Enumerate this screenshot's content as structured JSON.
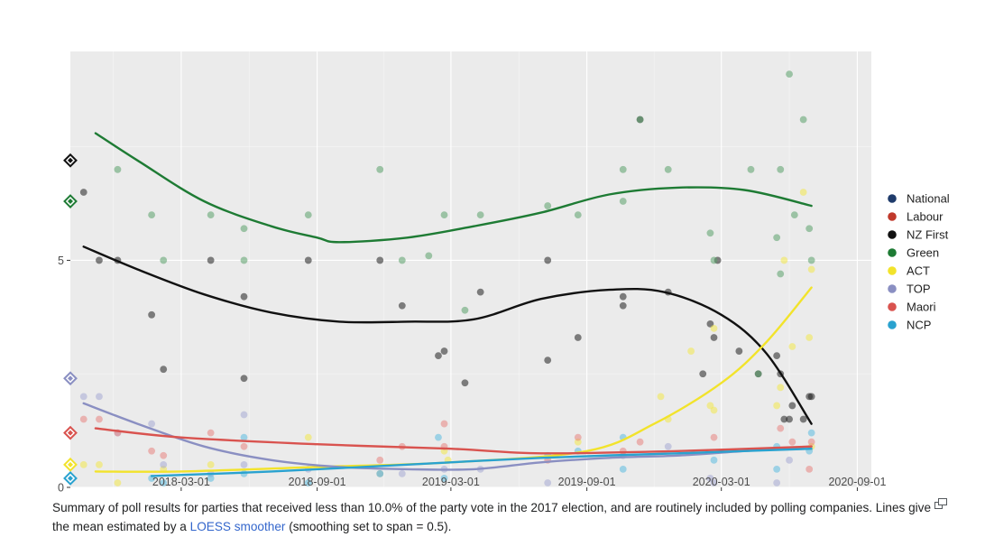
{
  "chart_data": {
    "type": "scatter",
    "title": "",
    "xlabel": "",
    "ylabel": "",
    "x_ticks": [
      "2018-03-01",
      "2018-09-01",
      "2019-03-01",
      "2019-09-01",
      "2020-03-01",
      "2020-09-01"
    ],
    "y_ticks": [
      "0",
      "5"
    ],
    "xlim": [
      "2017-10-02",
      "2020-09-20"
    ],
    "ylim": [
      0,
      9.6
    ],
    "grid": true,
    "legend_position": "right",
    "colors": {
      "National": "#1f3b6b",
      "Labour": "#c0392b",
      "NZ First": "#111111",
      "Green": "#1e7b34",
      "ACT": "#f2e32b",
      "TOP": "#8a8fc2",
      "Maori": "#d9534f",
      "NCP": "#2aa2cf"
    },
    "series": [
      {
        "name": "NZ First",
        "points": [
          [
            "2017-10-20",
            6.5
          ],
          [
            "2017-11-10",
            5.0
          ],
          [
            "2017-12-05",
            5.0
          ],
          [
            "2018-01-20",
            3.8
          ],
          [
            "2018-02-05",
            2.6
          ],
          [
            "2018-04-10",
            5.0
          ],
          [
            "2018-05-25",
            2.4
          ],
          [
            "2018-05-25",
            4.2
          ],
          [
            "2018-08-20",
            5.0
          ],
          [
            "2018-11-25",
            5.0
          ],
          [
            "2018-12-25",
            4.0
          ],
          [
            "2019-02-12",
            2.9
          ],
          [
            "2019-02-20",
            3.0
          ],
          [
            "2019-03-20",
            2.3
          ],
          [
            "2019-04-10",
            4.3
          ],
          [
            "2019-07-10",
            2.8
          ],
          [
            "2019-07-10",
            5.0
          ],
          [
            "2019-08-20",
            3.3
          ],
          [
            "2019-10-20",
            4.2
          ],
          [
            "2019-10-20",
            4.0
          ],
          [
            "2019-11-12",
            8.1
          ],
          [
            "2019-12-20",
            4.3
          ],
          [
            "2020-02-05",
            2.5
          ],
          [
            "2020-02-15",
            3.6
          ],
          [
            "2020-02-20",
            3.3
          ],
          [
            "2020-02-25",
            5.0
          ],
          [
            "2020-03-25",
            3.0
          ],
          [
            "2020-04-20",
            2.5
          ],
          [
            "2020-05-15",
            2.9
          ],
          [
            "2020-05-20",
            2.5
          ],
          [
            "2020-05-25",
            1.5
          ],
          [
            "2020-06-01",
            1.5
          ],
          [
            "2020-06-05",
            1.8
          ],
          [
            "2020-06-20",
            1.5
          ],
          [
            "2020-06-28",
            2.0
          ],
          [
            "2020-07-01",
            2.0
          ]
        ],
        "trend": [
          [
            "2017-10-20",
            5.3
          ],
          [
            "2018-01-01",
            4.8
          ],
          [
            "2018-04-01",
            4.25
          ],
          [
            "2018-07-01",
            3.85
          ],
          [
            "2018-10-01",
            3.65
          ],
          [
            "2019-01-01",
            3.65
          ],
          [
            "2019-04-01",
            3.7
          ],
          [
            "2019-07-01",
            4.15
          ],
          [
            "2019-10-01",
            4.35
          ],
          [
            "2019-12-15",
            4.3
          ],
          [
            "2020-03-01",
            3.8
          ],
          [
            "2020-05-01",
            2.95
          ],
          [
            "2020-07-01",
            1.4
          ]
        ],
        "marker": "#1f1f1f"
      },
      {
        "name": "Green",
        "points": [
          [
            "2017-12-05",
            7.0
          ],
          [
            "2018-01-20",
            6.0
          ],
          [
            "2018-02-05",
            5.0
          ],
          [
            "2018-04-10",
            6.0
          ],
          [
            "2018-05-25",
            5.7
          ],
          [
            "2018-05-25",
            5.0
          ],
          [
            "2018-08-20",
            6.0
          ],
          [
            "2018-11-25",
            7.0
          ],
          [
            "2018-12-25",
            5.0
          ],
          [
            "2019-01-30",
            5.1
          ],
          [
            "2019-02-20",
            6.0
          ],
          [
            "2019-03-20",
            3.9
          ],
          [
            "2019-04-10",
            6.0
          ],
          [
            "2019-07-10",
            6.2
          ],
          [
            "2019-08-20",
            6.0
          ],
          [
            "2019-10-20",
            7.0
          ],
          [
            "2019-10-20",
            6.3
          ],
          [
            "2019-11-12",
            8.1
          ],
          [
            "2019-12-20",
            7.0
          ],
          [
            "2020-02-15",
            5.6
          ],
          [
            "2020-02-20",
            5.0
          ],
          [
            "2020-04-10",
            7.0
          ],
          [
            "2020-04-20",
            2.5
          ],
          [
            "2020-05-15",
            5.5
          ],
          [
            "2020-05-20",
            7.0
          ],
          [
            "2020-05-20",
            4.7
          ],
          [
            "2020-06-01",
            9.1
          ],
          [
            "2020-06-08",
            6.0
          ],
          [
            "2020-06-20",
            8.1
          ],
          [
            "2020-06-28",
            5.7
          ],
          [
            "2020-07-01",
            5.0
          ]
        ],
        "trend": [
          [
            "2017-11-05",
            7.8
          ],
          [
            "2018-01-01",
            7.2
          ],
          [
            "2018-04-01",
            6.3
          ],
          [
            "2018-07-01",
            5.75
          ],
          [
            "2018-09-01",
            5.5
          ],
          [
            "2018-10-01",
            5.4
          ],
          [
            "2019-01-01",
            5.5
          ],
          [
            "2019-04-01",
            5.75
          ],
          [
            "2019-07-01",
            6.05
          ],
          [
            "2019-10-01",
            6.45
          ],
          [
            "2020-01-01",
            6.6
          ],
          [
            "2020-04-01",
            6.55
          ],
          [
            "2020-07-01",
            6.2
          ]
        ],
        "marker": "#5aa06a"
      },
      {
        "name": "ACT",
        "points": [
          [
            "2017-10-20",
            0.5
          ],
          [
            "2017-11-10",
            0.5
          ],
          [
            "2017-12-05",
            0.1
          ],
          [
            "2018-02-05",
            0.4
          ],
          [
            "2018-04-10",
            0.5
          ],
          [
            "2018-08-20",
            1.1
          ],
          [
            "2018-11-25",
            0.3
          ],
          [
            "2019-02-20",
            0.8
          ],
          [
            "2019-02-25",
            0.6
          ],
          [
            "2019-08-20",
            1.0
          ],
          [
            "2019-12-10",
            2.0
          ],
          [
            "2019-12-20",
            1.5
          ],
          [
            "2020-01-20",
            3.0
          ],
          [
            "2020-02-15",
            1.8
          ],
          [
            "2020-02-20",
            3.5
          ],
          [
            "2020-02-20",
            1.7
          ],
          [
            "2020-05-15",
            1.8
          ],
          [
            "2020-05-20",
            2.2
          ],
          [
            "2020-05-25",
            5.0
          ],
          [
            "2020-06-05",
            3.1
          ],
          [
            "2020-06-20",
            6.5
          ],
          [
            "2020-06-28",
            3.3
          ],
          [
            "2020-07-01",
            4.8
          ],
          [
            "2020-07-01",
            0.9
          ]
        ],
        "trend": [
          [
            "2017-11-05",
            0.35
          ],
          [
            "2018-03-01",
            0.35
          ],
          [
            "2018-09-01",
            0.45
          ],
          [
            "2019-03-01",
            0.55
          ],
          [
            "2019-09-01",
            0.8
          ],
          [
            "2019-12-01",
            1.4
          ],
          [
            "2020-03-01",
            2.3
          ],
          [
            "2020-05-01",
            3.2
          ],
          [
            "2020-07-01",
            4.4
          ]
        ],
        "marker": "#f3e84a"
      },
      {
        "name": "TOP",
        "points": [
          [
            "2017-10-20",
            2.0
          ],
          [
            "2017-11-10",
            2.0
          ],
          [
            "2017-12-05",
            1.2
          ],
          [
            "2018-01-20",
            1.4
          ],
          [
            "2018-02-05",
            0.5
          ],
          [
            "2018-04-10",
            0.3
          ],
          [
            "2018-05-25",
            1.6
          ],
          [
            "2018-05-25",
            0.5
          ],
          [
            "2018-08-20",
            0.4
          ],
          [
            "2018-11-25",
            0.3
          ],
          [
            "2018-12-25",
            0.3
          ],
          [
            "2019-02-20",
            0.4
          ],
          [
            "2019-04-10",
            0.4
          ],
          [
            "2019-07-10",
            0.1
          ],
          [
            "2019-10-20",
            0.7
          ],
          [
            "2019-12-20",
            0.9
          ],
          [
            "2020-02-15",
            0.2
          ],
          [
            "2020-02-20",
            0.1
          ],
          [
            "2020-05-15",
            0.1
          ],
          [
            "2020-06-01",
            0.6
          ]
        ],
        "trend": [
          [
            "2017-10-20",
            1.85
          ],
          [
            "2018-01-01",
            1.4
          ],
          [
            "2018-04-01",
            0.9
          ],
          [
            "2018-07-01",
            0.6
          ],
          [
            "2018-10-01",
            0.45
          ],
          [
            "2019-01-01",
            0.4
          ],
          [
            "2019-04-01",
            0.4
          ],
          [
            "2019-07-01",
            0.55
          ],
          [
            "2019-10-01",
            0.65
          ],
          [
            "2020-01-01",
            0.7
          ],
          [
            "2020-04-01",
            0.8
          ],
          [
            "2020-07-01",
            0.9
          ]
        ],
        "marker": "#a6a9d4"
      },
      {
        "name": "Maori",
        "points": [
          [
            "2017-10-20",
            1.5
          ],
          [
            "2017-11-10",
            1.5
          ],
          [
            "2017-12-05",
            1.2
          ],
          [
            "2018-01-20",
            0.8
          ],
          [
            "2018-02-05",
            0.7
          ],
          [
            "2018-04-10",
            1.2
          ],
          [
            "2018-05-25",
            0.9
          ],
          [
            "2018-11-25",
            0.6
          ],
          [
            "2018-12-25",
            0.9
          ],
          [
            "2019-02-20",
            1.4
          ],
          [
            "2019-02-20",
            0.9
          ],
          [
            "2019-07-10",
            0.6
          ],
          [
            "2019-08-20",
            1.1
          ],
          [
            "2019-10-20",
            0.8
          ],
          [
            "2019-11-12",
            1.0
          ],
          [
            "2020-02-20",
            1.1
          ],
          [
            "2020-05-20",
            1.3
          ],
          [
            "2020-06-05",
            1.0
          ],
          [
            "2020-06-28",
            0.4
          ],
          [
            "2020-07-01",
            1.0
          ]
        ],
        "trend": [
          [
            "2017-11-05",
            1.3
          ],
          [
            "2018-03-01",
            1.1
          ],
          [
            "2018-09-01",
            0.95
          ],
          [
            "2019-03-01",
            0.85
          ],
          [
            "2019-07-01",
            0.75
          ],
          [
            "2020-01-01",
            0.8
          ],
          [
            "2020-07-01",
            0.9
          ]
        ],
        "marker": "#e7837f"
      },
      {
        "name": "NCP",
        "points": [
          [
            "2018-01-20",
            0.2
          ],
          [
            "2018-02-05",
            0.1
          ],
          [
            "2018-04-10",
            0.2
          ],
          [
            "2018-05-25",
            0.3
          ],
          [
            "2018-05-25",
            1.1
          ],
          [
            "2018-08-20",
            0.1
          ],
          [
            "2018-11-25",
            0.3
          ],
          [
            "2019-02-12",
            1.1
          ],
          [
            "2019-02-20",
            0.2
          ],
          [
            "2019-07-10",
            0.7
          ],
          [
            "2019-08-20",
            0.8
          ],
          [
            "2019-10-20",
            0.4
          ],
          [
            "2019-10-20",
            1.1
          ],
          [
            "2020-02-20",
            0.6
          ],
          [
            "2020-05-15",
            0.4
          ],
          [
            "2020-05-15",
            0.9
          ],
          [
            "2020-06-28",
            0.8
          ],
          [
            "2020-07-01",
            1.2
          ]
        ],
        "trend": [
          [
            "2018-01-20",
            0.25
          ],
          [
            "2018-07-01",
            0.35
          ],
          [
            "2019-01-01",
            0.5
          ],
          [
            "2019-07-01",
            0.65
          ],
          [
            "2020-01-01",
            0.75
          ],
          [
            "2020-07-01",
            0.85
          ]
        ],
        "marker": "#5bbbe0"
      },
      {
        "name": "National",
        "points": [],
        "trend": [],
        "marker": "#1f3b6b"
      },
      {
        "name": "Labour",
        "points": [],
        "trend": [],
        "marker": "#c0392b"
      }
    ],
    "left_markers": [
      {
        "y": 7.2,
        "color": "#111111"
      },
      {
        "y": 6.3,
        "color": "#1e7b34"
      },
      {
        "y": 2.4,
        "color": "#8a8fc2"
      },
      {
        "y": 1.2,
        "color": "#d9534f"
      },
      {
        "y": 0.5,
        "color": "#f2e32b"
      },
      {
        "y": 0.2,
        "color": "#2aa2cf"
      }
    ]
  },
  "legend": {
    "items": [
      {
        "label": "National",
        "color": "#1f3b6b"
      },
      {
        "label": "Labour",
        "color": "#c0392b"
      },
      {
        "label": "NZ First",
        "color": "#111111"
      },
      {
        "label": "Green",
        "color": "#1e7b34"
      },
      {
        "label": "ACT",
        "color": "#f2e32b"
      },
      {
        "label": "TOP",
        "color": "#8a8fc2"
      },
      {
        "label": "Maori",
        "color": "#d9534f"
      },
      {
        "label": "NCP",
        "color": "#2aa2cf"
      }
    ]
  },
  "caption": {
    "before": "Summary of poll results for parties that received less than 10.0% of the party vote in the 2017 election, and are routinely included by polling companies. Lines give the mean estimated by a ",
    "link": "LOESS smoother",
    "after": " (smoothing set to span = 0.5)."
  },
  "icons": {
    "enlarge": "enlarge-icon"
  }
}
